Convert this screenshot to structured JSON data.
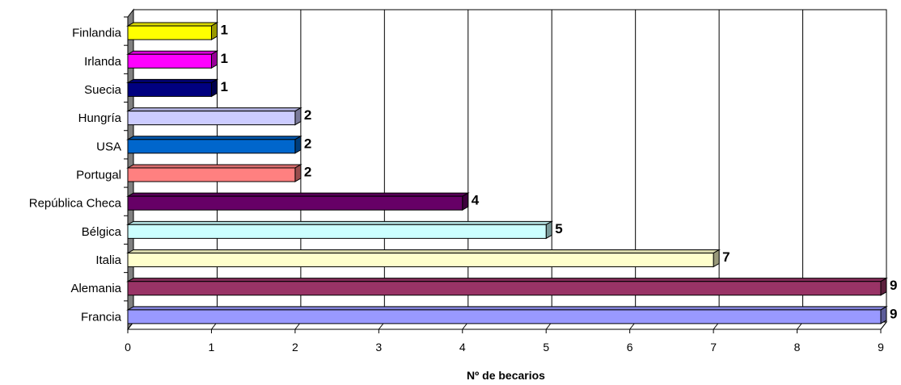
{
  "chart_data": {
    "type": "bar",
    "orientation": "horizontal",
    "style": "3d",
    "categories": [
      "Finlandia",
      "Irlanda",
      "Suecia",
      "Hungría",
      "USA",
      "Portugal",
      "República Checa",
      "Bélgica",
      "Italia",
      "Alemania",
      "Francia"
    ],
    "values": [
      1,
      1,
      1,
      2,
      2,
      2,
      4,
      5,
      7,
      9,
      9
    ],
    "data_labels": [
      "1",
      "1",
      "1",
      "2",
      "2",
      "2",
      "4",
      "5",
      "7",
      "9",
      "9"
    ],
    "bar_colors": [
      "#ffff00",
      "#ff00ff",
      "#000080",
      "#ccccff",
      "#0066cc",
      "#ff8080",
      "#660066",
      "#ccffff",
      "#ffffcc",
      "#993366",
      "#9999ff"
    ],
    "xlim": [
      0,
      9
    ],
    "x_ticks": [
      "0",
      "1",
      "2",
      "3",
      "4",
      "5",
      "6",
      "7",
      "8",
      "9"
    ],
    "xlabel": "Nº de becarios",
    "ylabel": "",
    "title": "",
    "grid": true,
    "legend": "none",
    "wall_color": "#808080"
  }
}
